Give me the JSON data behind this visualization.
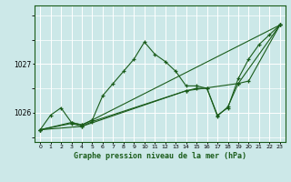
{
  "title": "Graphe pression niveau de la mer (hPa)",
  "bg_color": "#cce8e8",
  "grid_color": "#ffffff",
  "line_color": "#1a5c1a",
  "ylim": [
    1025.4,
    1028.2
  ],
  "xlim": [
    -0.5,
    23.5
  ],
  "yticks": [
    1026,
    1027
  ],
  "xticks": [
    0,
    1,
    2,
    3,
    4,
    5,
    6,
    7,
    8,
    9,
    10,
    11,
    12,
    13,
    14,
    15,
    16,
    17,
    18,
    19,
    20,
    21,
    22,
    23
  ],
  "series": [
    {
      "x": [
        0,
        1,
        2,
        3,
        4,
        5,
        6,
        7,
        8,
        9,
        10,
        11,
        12,
        13,
        14,
        15,
        16,
        17,
        18,
        19,
        20,
        21,
        22,
        23
      ],
      "y": [
        1025.65,
        1025.95,
        1026.1,
        1025.8,
        1025.75,
        1025.85,
        1026.35,
        1026.6,
        1026.85,
        1027.1,
        1027.45,
        1027.2,
        1027.05,
        1026.85,
        1026.55,
        1026.55,
        1026.5,
        1025.95,
        1026.1,
        1026.7,
        1027.1,
        1027.4,
        1027.6,
        1027.8
      ]
    },
    {
      "x": [
        0,
        3,
        4,
        5,
        23
      ],
      "y": [
        1025.65,
        1025.8,
        1025.75,
        1025.85,
        1027.8
      ]
    },
    {
      "x": [
        0,
        3,
        4,
        5,
        14,
        15,
        16,
        17,
        18,
        19,
        20,
        23
      ],
      "y": [
        1025.65,
        1025.78,
        1025.72,
        1025.82,
        1026.45,
        1026.5,
        1026.5,
        1025.93,
        1026.12,
        1026.6,
        1026.65,
        1027.8
      ]
    },
    {
      "x": [
        0,
        4,
        14,
        19,
        23
      ],
      "y": [
        1025.65,
        1025.72,
        1026.45,
        1026.6,
        1027.8
      ]
    }
  ]
}
